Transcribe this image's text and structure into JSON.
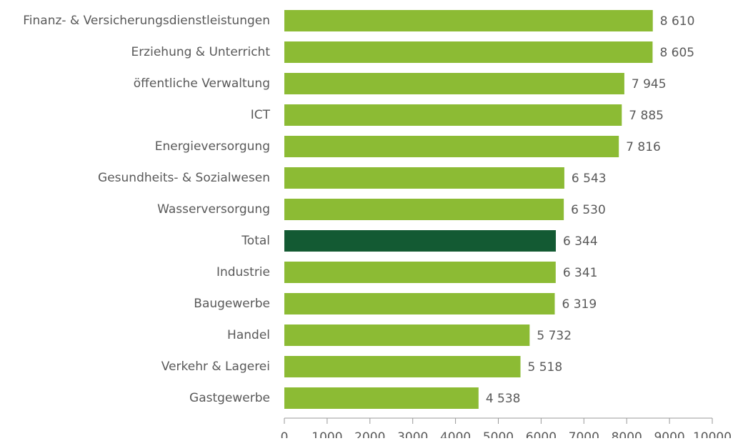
{
  "chart_data": {
    "type": "bar",
    "orientation": "horizontal",
    "categories": [
      "Finanz- & Versicherungsdienstleistungen",
      "Erziehung & Unterricht",
      "öffentliche Verwaltung",
      "ICT",
      "Energieversorgung",
      "Gesundheits- & Sozialwesen",
      "Wasserversorgung",
      "Total",
      "Industrie",
      "Baugewerbe",
      "Handel",
      "Verkehr & Lagerei",
      "Gastgewerbe"
    ],
    "values": [
      8610,
      8605,
      7945,
      7885,
      7816,
      6543,
      6530,
      6344,
      6341,
      6319,
      5732,
      5518,
      4538
    ],
    "value_labels": [
      "8 610",
      "8 605",
      "7 945",
      "7 885",
      "7 816",
      "6 543",
      "6 530",
      "6 344",
      "6 341",
      "6 319",
      "5 732",
      "5 518",
      "4 538"
    ],
    "colors": [
      "#8cbb34",
      "#8cbb34",
      "#8cbb34",
      "#8cbb34",
      "#8cbb34",
      "#8cbb34",
      "#8cbb34",
      "#135a33",
      "#8cbb34",
      "#8cbb34",
      "#8cbb34",
      "#8cbb34",
      "#8cbb34"
    ],
    "xlim": [
      0,
      10000
    ],
    "xticks": [
      0,
      1000,
      2000,
      3000,
      4000,
      5000,
      6000,
      7000,
      8000,
      9000,
      10000
    ],
    "grid": false
  }
}
